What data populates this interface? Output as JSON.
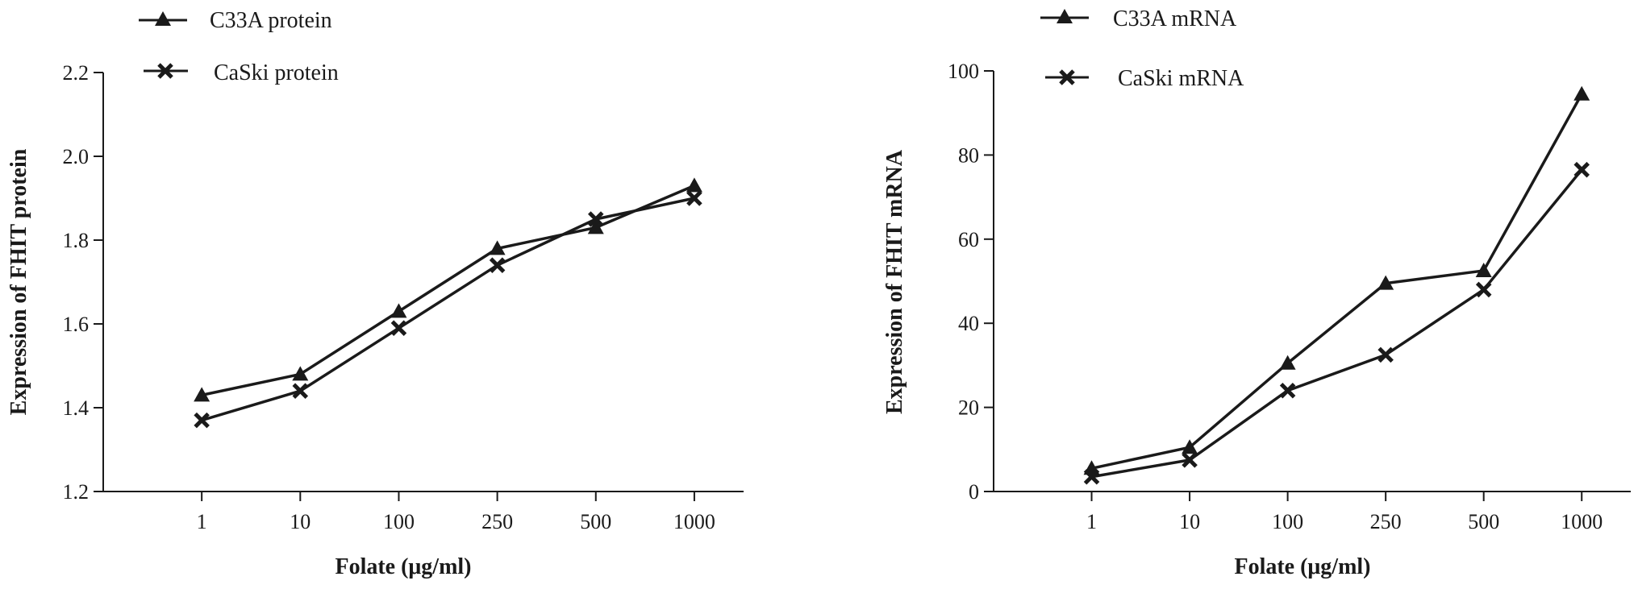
{
  "chart_data": [
    {
      "type": "line",
      "categories": [
        "1",
        "10",
        "100",
        "250",
        "500",
        "1000"
      ],
      "series": [
        {
          "name": "C33A protein",
          "marker": "triangle",
          "values": [
            1.43,
            1.48,
            1.63,
            1.78,
            1.83,
            1.93
          ]
        },
        {
          "name": "CaSki protein",
          "marker": "cross",
          "values": [
            1.37,
            1.44,
            1.59,
            1.74,
            1.85,
            1.9
          ]
        }
      ],
      "xlabel": "Folate (μg/ml)",
      "ylabel": "Expression of FHIT protein",
      "ylim": [
        1.2,
        2.2
      ],
      "yticks": [
        "1.2",
        "1.4",
        "1.6",
        "1.8",
        "2.0",
        "2.2"
      ],
      "grid": false,
      "legend_position": "top-left"
    },
    {
      "type": "line",
      "categories": [
        "1",
        "10",
        "100",
        "250",
        "500",
        "1000"
      ],
      "series": [
        {
          "name": "C33A mRNA",
          "marker": "triangle",
          "values": [
            5.5,
            10.5,
            30.5,
            49.5,
            52.5,
            94.5
          ]
        },
        {
          "name": "CaSki mRNA",
          "marker": "cross",
          "values": [
            3.5,
            7.5,
            24.0,
            32.5,
            48.0,
            76.5
          ]
        }
      ],
      "xlabel": "Folate (μg/ml)",
      "ylabel": "Expression of FHIT mRNA",
      "ylim": [
        0,
        100
      ],
      "yticks": [
        "0",
        "20",
        "40",
        "60",
        "80",
        "100"
      ],
      "grid": false,
      "legend_position": "top-left"
    }
  ],
  "colors": {
    "line": "#1a1a1a",
    "background": "#ffffff"
  }
}
